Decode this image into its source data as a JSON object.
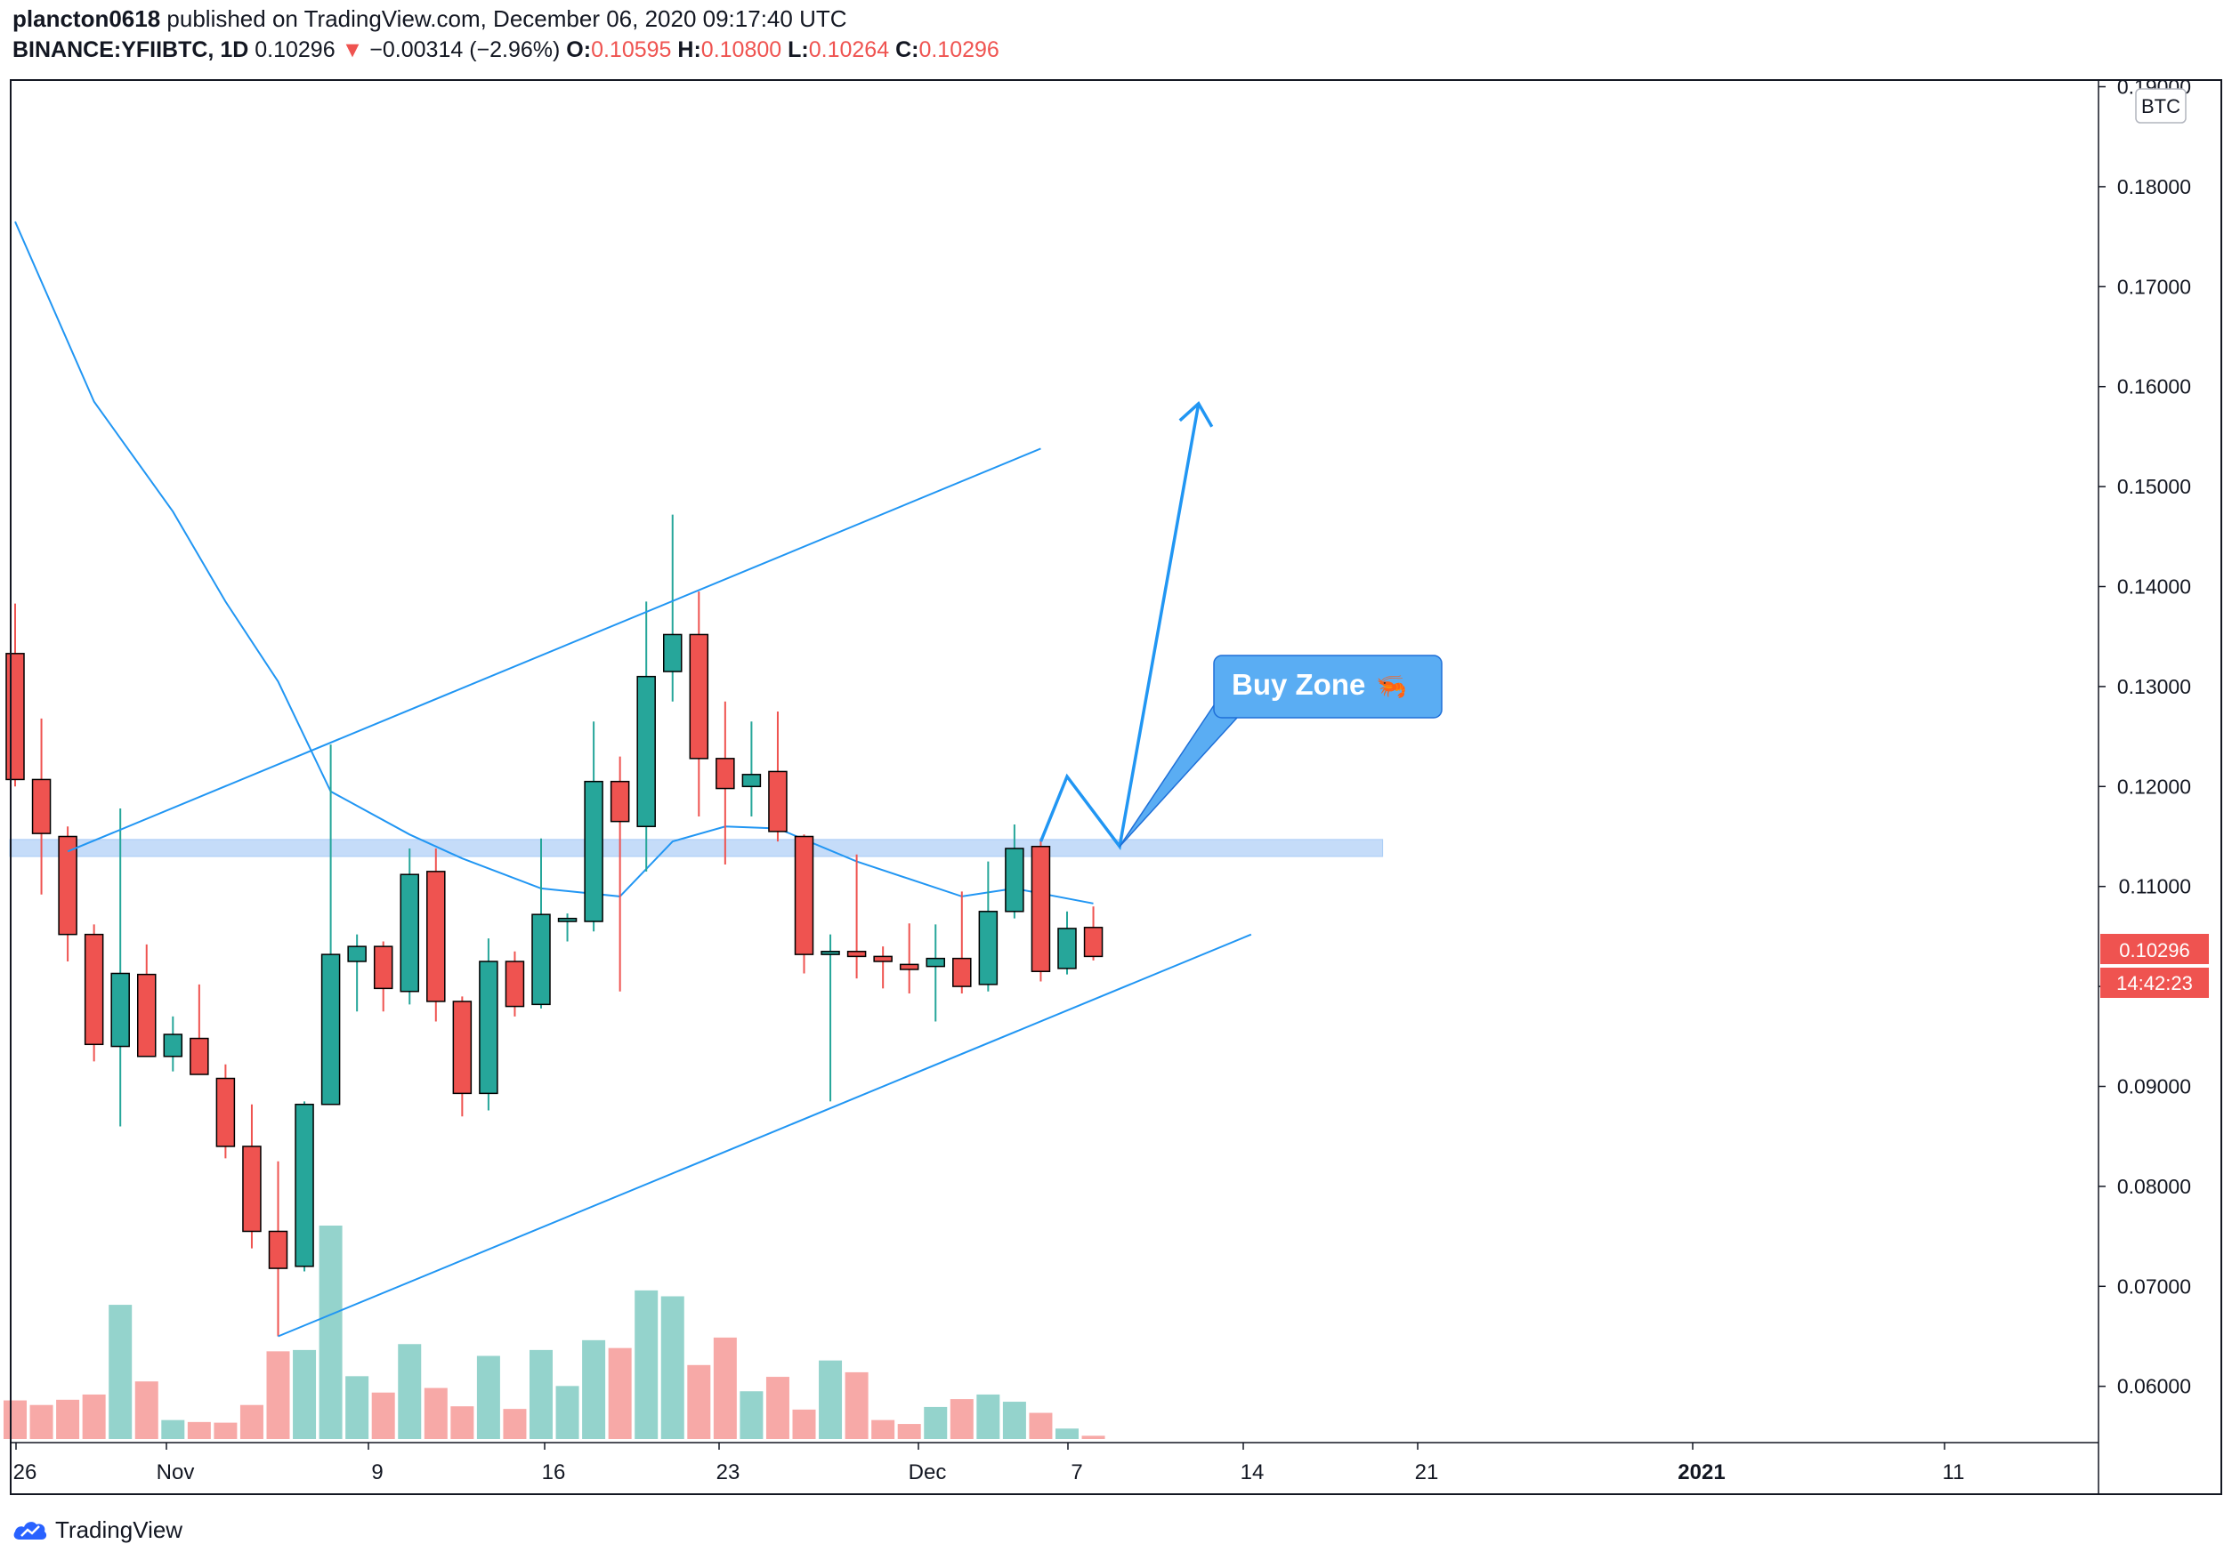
{
  "header": {
    "author": "plancton0618",
    "published_text": "published on TradingView.com, December 06, 2020 09:17:40 UTC",
    "symbol": "BINANCE:YFIIBTC, 1D",
    "last": "0.10296",
    "change_arrow": "▼",
    "change": "−0.00314 (−2.96%)",
    "o_label": "O:",
    "o_value": "0.10595",
    "h_label": "H:",
    "h_value": "0.10800",
    "l_label": "L:",
    "l_value": "0.10264",
    "c_label": "C:",
    "c_value": "0.10296"
  },
  "footer": {
    "logo_text": "TradingView",
    "logo_icon": "tradingview-cloud-icon"
  },
  "price_badge": "0.10296",
  "countdown_badge": "14:42:23",
  "annotation": {
    "label": "Buy Zone",
    "emoji": "🦐"
  },
  "colors": {
    "up": "#26a69a",
    "down": "#ef5350",
    "up_volume": "#94d3cc",
    "down_volume": "#f7a9a7",
    "line": "#2196f3",
    "zone": "#bbd6f8",
    "label_bg": "#5aadf3"
  },
  "chart_data": {
    "type": "candlestick",
    "symbol": "BINANCE:YFIIBTC",
    "interval": "1D",
    "currency": "BTC",
    "ylim": [
      0.055,
      0.19
    ],
    "y_ticks": [
      "0.19000",
      "0.18000",
      "0.17000",
      "0.16000",
      "0.15000",
      "0.14000",
      "0.13000",
      "0.12000",
      "0.11000",
      "0.10000",
      "0.09000",
      "0.08000",
      "0.07000",
      "0.06000"
    ],
    "x_ticks": [
      "26",
      "Nov",
      "9",
      "16",
      "23",
      "Dec",
      "7",
      "14",
      "21",
      "2021",
      "11"
    ],
    "x_range": [
      "2020-10-26",
      "2021-01-16"
    ],
    "candles": [
      {
        "date": "2020-10-26",
        "open": 0.1333,
        "high": 0.1383,
        "low": 0.12,
        "close": 0.1207,
        "volume": 5.9
      },
      {
        "date": "2020-10-27",
        "open": 0.1207,
        "high": 0.1268,
        "low": 0.1092,
        "close": 0.1153,
        "volume": 5.2
      },
      {
        "date": "2020-10-28",
        "open": 0.115,
        "high": 0.116,
        "low": 0.1025,
        "close": 0.1052,
        "volume": 6.0
      },
      {
        "date": "2020-10-29",
        "open": 0.1052,
        "high": 0.1062,
        "low": 0.0925,
        "close": 0.0942,
        "volume": 6.8
      },
      {
        "date": "2020-10-30",
        "open": 0.094,
        "high": 0.1178,
        "low": 0.086,
        "close": 0.1013,
        "volume": 20.5
      },
      {
        "date": "2020-10-31",
        "open": 0.1012,
        "high": 0.1042,
        "low": 0.093,
        "close": 0.093,
        "volume": 8.8
      },
      {
        "date": "2020-11-01",
        "open": 0.093,
        "high": 0.097,
        "low": 0.0915,
        "close": 0.0952,
        "volume": 2.9
      },
      {
        "date": "2020-11-02",
        "open": 0.0948,
        "high": 0.1002,
        "low": 0.0915,
        "close": 0.0912,
        "volume": 2.6
      },
      {
        "date": "2020-11-03",
        "open": 0.0908,
        "high": 0.0922,
        "low": 0.0828,
        "close": 0.084,
        "volume": 2.5
      },
      {
        "date": "2020-11-04",
        "open": 0.084,
        "high": 0.0882,
        "low": 0.0738,
        "close": 0.0755,
        "volume": 5.2
      },
      {
        "date": "2020-11-05",
        "open": 0.0755,
        "high": 0.0825,
        "low": 0.065,
        "close": 0.0718,
        "volume": 13.4
      },
      {
        "date": "2020-11-06",
        "open": 0.072,
        "high": 0.0885,
        "low": 0.0715,
        "close": 0.0882,
        "volume": 13.6
      },
      {
        "date": "2020-11-07",
        "open": 0.0882,
        "high": 0.1242,
        "low": 0.0882,
        "close": 0.1032,
        "volume": 32.6
      },
      {
        "date": "2020-11-08",
        "open": 0.1025,
        "high": 0.1052,
        "low": 0.0975,
        "close": 0.104,
        "volume": 9.6
      },
      {
        "date": "2020-11-09",
        "open": 0.104,
        "high": 0.1045,
        "low": 0.0975,
        "close": 0.0998,
        "volume": 7.1
      },
      {
        "date": "2020-11-10",
        "open": 0.0995,
        "high": 0.1138,
        "low": 0.0982,
        "close": 0.1112,
        "volume": 14.5
      },
      {
        "date": "2020-11-11",
        "open": 0.1115,
        "high": 0.1138,
        "low": 0.0965,
        "close": 0.0985,
        "volume": 7.8
      },
      {
        "date": "2020-11-12",
        "open": 0.0985,
        "high": 0.099,
        "low": 0.087,
        "close": 0.0893,
        "volume": 5.0
      },
      {
        "date": "2020-11-13",
        "open": 0.0893,
        "high": 0.1048,
        "low": 0.0876,
        "close": 0.1025,
        "volume": 12.7
      },
      {
        "date": "2020-11-14",
        "open": 0.1025,
        "high": 0.1035,
        "low": 0.097,
        "close": 0.098,
        "volume": 4.6
      },
      {
        "date": "2020-11-15",
        "open": 0.0982,
        "high": 0.1148,
        "low": 0.0978,
        "close": 0.1072,
        "volume": 13.6
      },
      {
        "date": "2020-11-16",
        "open": 0.1065,
        "high": 0.1073,
        "low": 0.1045,
        "close": 0.1068,
        "volume": 8.1
      },
      {
        "date": "2020-11-17",
        "open": 0.1065,
        "high": 0.1265,
        "low": 0.1055,
        "close": 0.1205,
        "volume": 15.1
      },
      {
        "date": "2020-11-18",
        "open": 0.1205,
        "high": 0.123,
        "low": 0.0995,
        "close": 0.1165,
        "volume": 13.9
      },
      {
        "date": "2020-11-19",
        "open": 0.116,
        "high": 0.1385,
        "low": 0.1115,
        "close": 0.131,
        "volume": 22.7
      },
      {
        "date": "2020-11-20",
        "open": 0.1315,
        "high": 0.1472,
        "low": 0.1285,
        "close": 0.1352,
        "volume": 21.8
      },
      {
        "date": "2020-11-21",
        "open": 0.1352,
        "high": 0.1395,
        "low": 0.117,
        "close": 0.1228,
        "volume": 11.3
      },
      {
        "date": "2020-11-22",
        "open": 0.1228,
        "high": 0.1285,
        "low": 0.1122,
        "close": 0.1198,
        "volume": 15.5
      },
      {
        "date": "2020-11-23",
        "open": 0.12,
        "high": 0.1265,
        "low": 0.117,
        "close": 0.1212,
        "volume": 7.3
      },
      {
        "date": "2020-11-24",
        "open": 0.1215,
        "high": 0.1275,
        "low": 0.1145,
        "close": 0.1155,
        "volume": 9.5
      },
      {
        "date": "2020-11-25",
        "open": 0.115,
        "high": 0.1152,
        "low": 0.1013,
        "close": 0.1032,
        "volume": 4.5
      },
      {
        "date": "2020-11-26",
        "open": 0.1032,
        "high": 0.1052,
        "low": 0.0885,
        "close": 0.1035,
        "volume": 12.0
      },
      {
        "date": "2020-11-27",
        "open": 0.1035,
        "high": 0.1132,
        "low": 0.1008,
        "close": 0.103,
        "volume": 10.2
      },
      {
        "date": "2020-11-28",
        "open": 0.103,
        "high": 0.104,
        "low": 0.0998,
        "close": 0.1025,
        "volume": 2.9
      },
      {
        "date": "2020-11-29",
        "open": 0.1022,
        "high": 0.1063,
        "low": 0.0993,
        "close": 0.1017,
        "volume": 2.3
      },
      {
        "date": "2020-11-30",
        "open": 0.102,
        "high": 0.1062,
        "low": 0.0965,
        "close": 0.1028,
        "volume": 4.9
      },
      {
        "date": "2020-12-01",
        "open": 0.1028,
        "high": 0.1095,
        "low": 0.0993,
        "close": 0.1,
        "volume": 6.1
      },
      {
        "date": "2020-12-02",
        "open": 0.1002,
        "high": 0.1125,
        "low": 0.0995,
        "close": 0.1075,
        "volume": 6.8
      },
      {
        "date": "2020-12-03",
        "open": 0.1075,
        "high": 0.1162,
        "low": 0.1068,
        "close": 0.1138,
        "volume": 5.7
      },
      {
        "date": "2020-12-04",
        "open": 0.114,
        "high": 0.1148,
        "low": 0.1005,
        "close": 0.1015,
        "volume": 4.0
      },
      {
        "date": "2020-12-05",
        "open": 0.1018,
        "high": 0.1075,
        "low": 0.1012,
        "close": 0.1058,
        "volume": 1.6
      },
      {
        "date": "2020-12-06",
        "open": 0.1059,
        "high": 0.108,
        "low": 0.1026,
        "close": 0.103,
        "volume": 0.5
      }
    ],
    "moving_average": [
      {
        "date": "2020-10-26",
        "value": 0.1765
      },
      {
        "date": "2020-10-29",
        "value": 0.1585
      },
      {
        "date": "2020-11-01",
        "value": 0.1475
      },
      {
        "date": "2020-11-03",
        "value": 0.1385
      },
      {
        "date": "2020-11-05",
        "value": 0.1305
      },
      {
        "date": "2020-11-07",
        "value": 0.1195
      },
      {
        "date": "2020-11-10",
        "value": 0.1152
      },
      {
        "date": "2020-11-12",
        "value": 0.1128
      },
      {
        "date": "2020-11-15",
        "value": 0.1098
      },
      {
        "date": "2020-11-18",
        "value": 0.109
      },
      {
        "date": "2020-11-20",
        "value": 0.1145
      },
      {
        "date": "2020-11-22",
        "value": 0.116
      },
      {
        "date": "2020-11-24",
        "value": 0.1158
      },
      {
        "date": "2020-11-27",
        "value": 0.1125
      },
      {
        "date": "2020-12-01",
        "value": 0.109
      },
      {
        "date": "2020-12-03",
        "value": 0.1098
      },
      {
        "date": "2020-12-06",
        "value": 0.1083
      }
    ],
    "drawings": {
      "channel_upper": [
        {
          "date": "2020-10-28",
          "value": 0.1135
        },
        {
          "date": "2020-12-04",
          "value": 0.1538
        }
      ],
      "channel_lower": [
        {
          "date": "2020-11-05",
          "value": 0.065
        },
        {
          "date": "2020-12-12",
          "value": 0.1052
        }
      ],
      "horizontal_zone": {
        "from": "2020-10-26",
        "to": "2020-12-17",
        "low": 0.113,
        "high": 0.1147
      },
      "projection_path": [
        {
          "date": "2020-12-04",
          "value": 0.1145
        },
        {
          "date": "2020-12-05",
          "value": 0.121
        },
        {
          "date": "2020-12-07",
          "value": 0.114
        },
        {
          "date": "2020-12-10",
          "value": 0.1583
        }
      ]
    }
  }
}
